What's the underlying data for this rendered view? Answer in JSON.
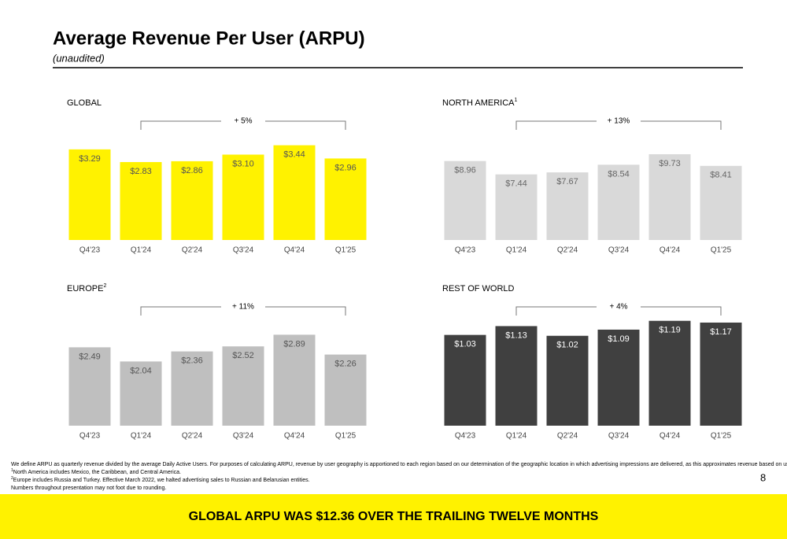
{
  "title": "Average Revenue Per User (ARPU)",
  "subtitle": "(unaudited)",
  "chart_data": [
    {
      "type": "bar",
      "title": "GLOBAL",
      "annotation": "+ 5%",
      "color": "#fff200",
      "label_color": "#555555",
      "categories": [
        "Q4'23",
        "Q1'24",
        "Q2'24",
        "Q3'24",
        "Q4'24",
        "Q1'25"
      ],
      "values": [
        3.29,
        2.83,
        2.86,
        3.1,
        3.44,
        2.96
      ],
      "value_labels": [
        "$3.29",
        "$2.83",
        "$2.86",
        "$3.10",
        "$3.44",
        "$2.96"
      ],
      "ylim": [
        0,
        4
      ]
    },
    {
      "type": "bar",
      "title": "NORTH AMERICA",
      "note": "1",
      "annotation": "+ 13%",
      "color": "#d9d9d9",
      "label_color": "#666666",
      "categories": [
        "Q4'23",
        "Q1'24",
        "Q2'24",
        "Q3'24",
        "Q4'24",
        "Q1'25"
      ],
      "values": [
        8.96,
        7.44,
        7.67,
        8.54,
        9.73,
        8.41
      ],
      "value_labels": [
        "$8.96",
        "$7.44",
        "$7.67",
        "$8.54",
        "$9.73",
        "$8.41"
      ],
      "ylim": [
        0,
        12.5
      ]
    },
    {
      "type": "bar",
      "title": "EUROPE",
      "note": "2",
      "annotation": "+ 11%",
      "color": "#bfbfbf",
      "label_color": "#555555",
      "categories": [
        "Q4'23",
        "Q1'24",
        "Q2'24",
        "Q3'24",
        "Q4'24",
        "Q1'25"
      ],
      "values": [
        2.49,
        2.04,
        2.36,
        2.52,
        2.89,
        2.26
      ],
      "value_labels": [
        "$2.49",
        "$2.04",
        "$2.36",
        "$2.52",
        "$2.89",
        "$2.26"
      ],
      "ylim": [
        0,
        3.5
      ]
    },
    {
      "type": "bar",
      "title": "REST OF WORLD",
      "annotation": "+ 4%",
      "color": "#404040",
      "label_color": "#ffffff",
      "categories": [
        "Q4'23",
        "Q1'24",
        "Q2'24",
        "Q3'24",
        "Q4'24",
        "Q1'25"
      ],
      "values": [
        1.03,
        1.13,
        1.02,
        1.09,
        1.19,
        1.17
      ],
      "value_labels": [
        "$1.03",
        "$1.13",
        "$1.02",
        "$1.09",
        "$1.19",
        "$1.17"
      ],
      "ylim": [
        0,
        1.25
      ]
    }
  ],
  "footnotes": [
    {
      "text": "We define ARPU as quarterly revenue divided by the average Daily Active Users. For purposes of calculating ARPU, revenue by user geography is apportioned to each region based on our determination of the geographic location in which advertising impressions are delivered, as this approximates revenue based on user activity."
    },
    {
      "mark": "1",
      "text": "North America includes Mexico, the Caribbean, and Central America."
    },
    {
      "mark": "2",
      "text": "Europe includes Russia and Turkey. Effective March 2022, we halted advertising sales to Russian and Belarusian entities."
    },
    {
      "text": "Numbers throughout presentation may not foot due to rounding."
    }
  ],
  "page_number": "8",
  "banner": "GLOBAL ARPU WAS $12.36 OVER THE TRAILING TWELVE MONTHS"
}
